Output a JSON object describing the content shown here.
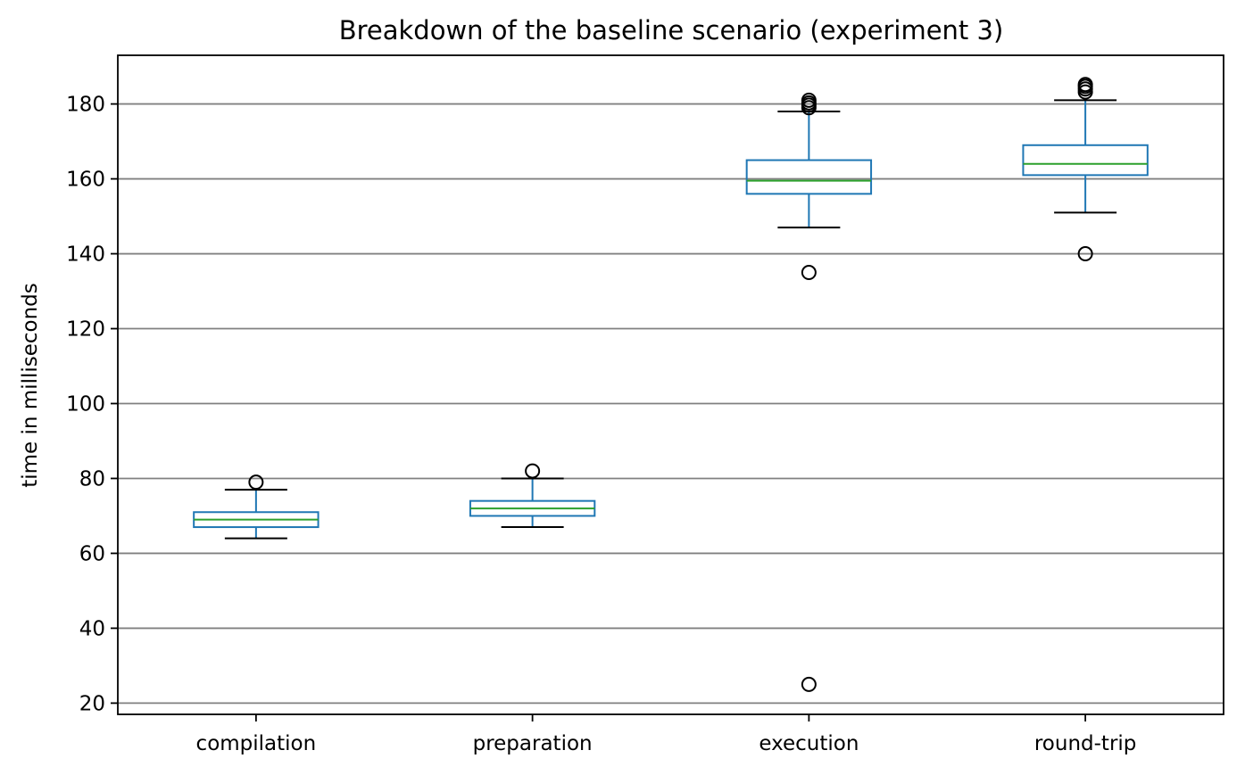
{
  "chart_data": {
    "type": "box",
    "title": "Breakdown of the baseline scenario (experiment 3)",
    "xlabel": "",
    "ylabel": "time in milliseconds",
    "ylim": [
      17,
      193
    ],
    "yticks": [
      20,
      40,
      60,
      80,
      100,
      120,
      140,
      160,
      180
    ],
    "grid": "y",
    "categories": [
      "compilation",
      "preparation",
      "execution",
      "round-trip"
    ],
    "boxes": [
      {
        "category": "compilation",
        "whisker_low": 64,
        "q1": 67,
        "median": 69,
        "q3": 71,
        "whisker_high": 77,
        "outliers": [
          79
        ]
      },
      {
        "category": "preparation",
        "whisker_low": 67,
        "q1": 70,
        "median": 72,
        "q3": 74,
        "whisker_high": 80,
        "outliers": [
          82
        ]
      },
      {
        "category": "execution",
        "whisker_low": 147,
        "q1": 156,
        "median": 159.5,
        "q3": 165,
        "whisker_high": 178,
        "outliers": [
          135,
          25,
          179,
          179.7,
          180.3,
          181
        ]
      },
      {
        "category": "round-trip",
        "whisker_low": 151,
        "q1": 161,
        "median": 164,
        "q3": 169,
        "whisker_high": 181,
        "outliers": [
          140,
          183.2,
          184,
          184.7,
          185.2
        ]
      }
    ],
    "colors": {
      "box": "#1f77b4",
      "median": "#2ca02c",
      "whisker_cap": "#000000",
      "outlier": "#000000",
      "grid": "#808080"
    }
  }
}
